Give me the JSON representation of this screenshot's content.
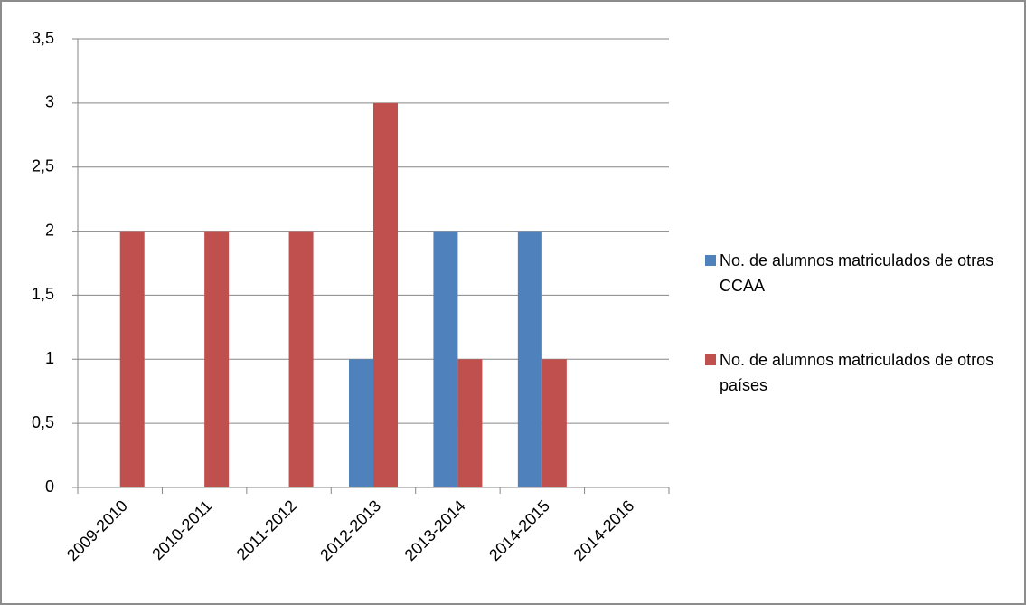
{
  "chart_data": {
    "type": "bar",
    "categories": [
      "2009-2010",
      "2010-2011",
      "2011-2012",
      "2012-2013",
      "2013-2014",
      "2014-2015",
      "2014-2016"
    ],
    "series": [
      {
        "name": "No. de alumnos matriculados de otras CCAA",
        "color": "#4f81bd",
        "values": [
          0,
          0,
          0,
          1,
          2,
          2,
          0
        ]
      },
      {
        "name": "No. de alumnos matriculados de otros países",
        "color": "#c0504d",
        "values": [
          2,
          2,
          2,
          3,
          1,
          1,
          0
        ]
      }
    ],
    "ylim": [
      0,
      3.5
    ],
    "yticks": [
      0,
      {
        "value": 0.5,
        "label": "0,5"
      },
      1,
      {
        "value": 1.5,
        "label": "1,5"
      },
      2,
      {
        "value": 2.5,
        "label": "2,5"
      },
      3,
      {
        "value": 3.5,
        "label": "3,5"
      }
    ],
    "grid": true,
    "legend": "right"
  }
}
